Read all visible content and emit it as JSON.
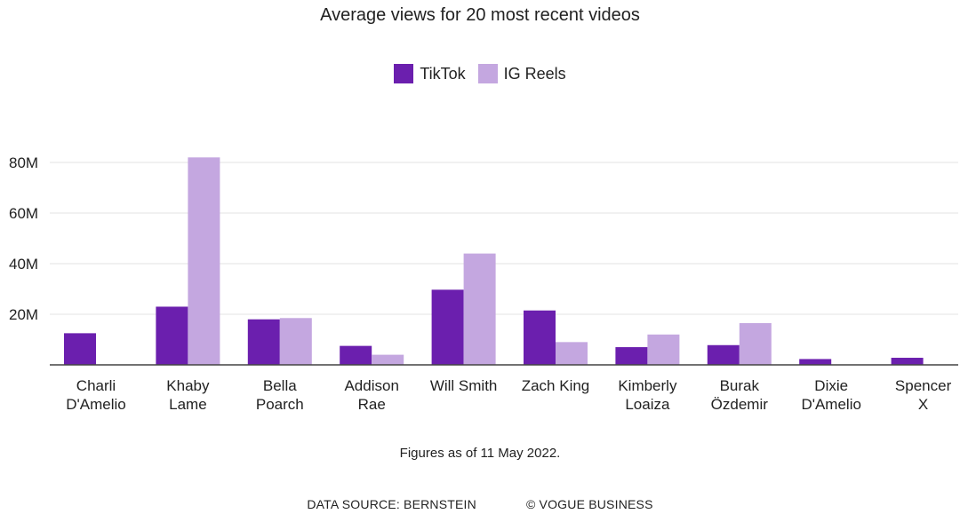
{
  "chart_data": {
    "type": "bar",
    "title": "Average views for 20 most recent videos",
    "categories": [
      [
        "Charli",
        "D'Amelio"
      ],
      [
        "Khaby",
        "Lame"
      ],
      [
        "Bella",
        "Poarch"
      ],
      [
        "Addison",
        "Rae"
      ],
      [
        "Will Smith"
      ],
      [
        "Zach King"
      ],
      [
        "Kimberly",
        "Loaiza"
      ],
      [
        "Burak",
        "Özdemir"
      ],
      [
        "Dixie",
        "D'Amelio"
      ],
      [
        "Spencer",
        "X"
      ]
    ],
    "series": [
      {
        "name": "TikTok",
        "color": "#6b1fae",
        "values": [
          12.5,
          23,
          18,
          7.5,
          29.7,
          21.5,
          7,
          7.8,
          2.3,
          2.8
        ]
      },
      {
        "name": "IG Reels",
        "color": "#c4a7e0",
        "values": [
          0,
          82,
          18.5,
          4,
          44,
          9,
          12,
          16.5,
          0,
          0
        ]
      }
    ],
    "ylim": [
      0,
      80
    ],
    "yticks": [
      20,
      40,
      60,
      80
    ],
    "ytick_labels": [
      "20M",
      "40M",
      "60M",
      "80M"
    ],
    "grid": true,
    "legend_position": "top-center"
  },
  "note": "Figures as of 11 May 2022.",
  "footer": {
    "source": "DATA SOURCE: BERNSTEIN",
    "credit": "© VOGUE BUSINESS"
  }
}
